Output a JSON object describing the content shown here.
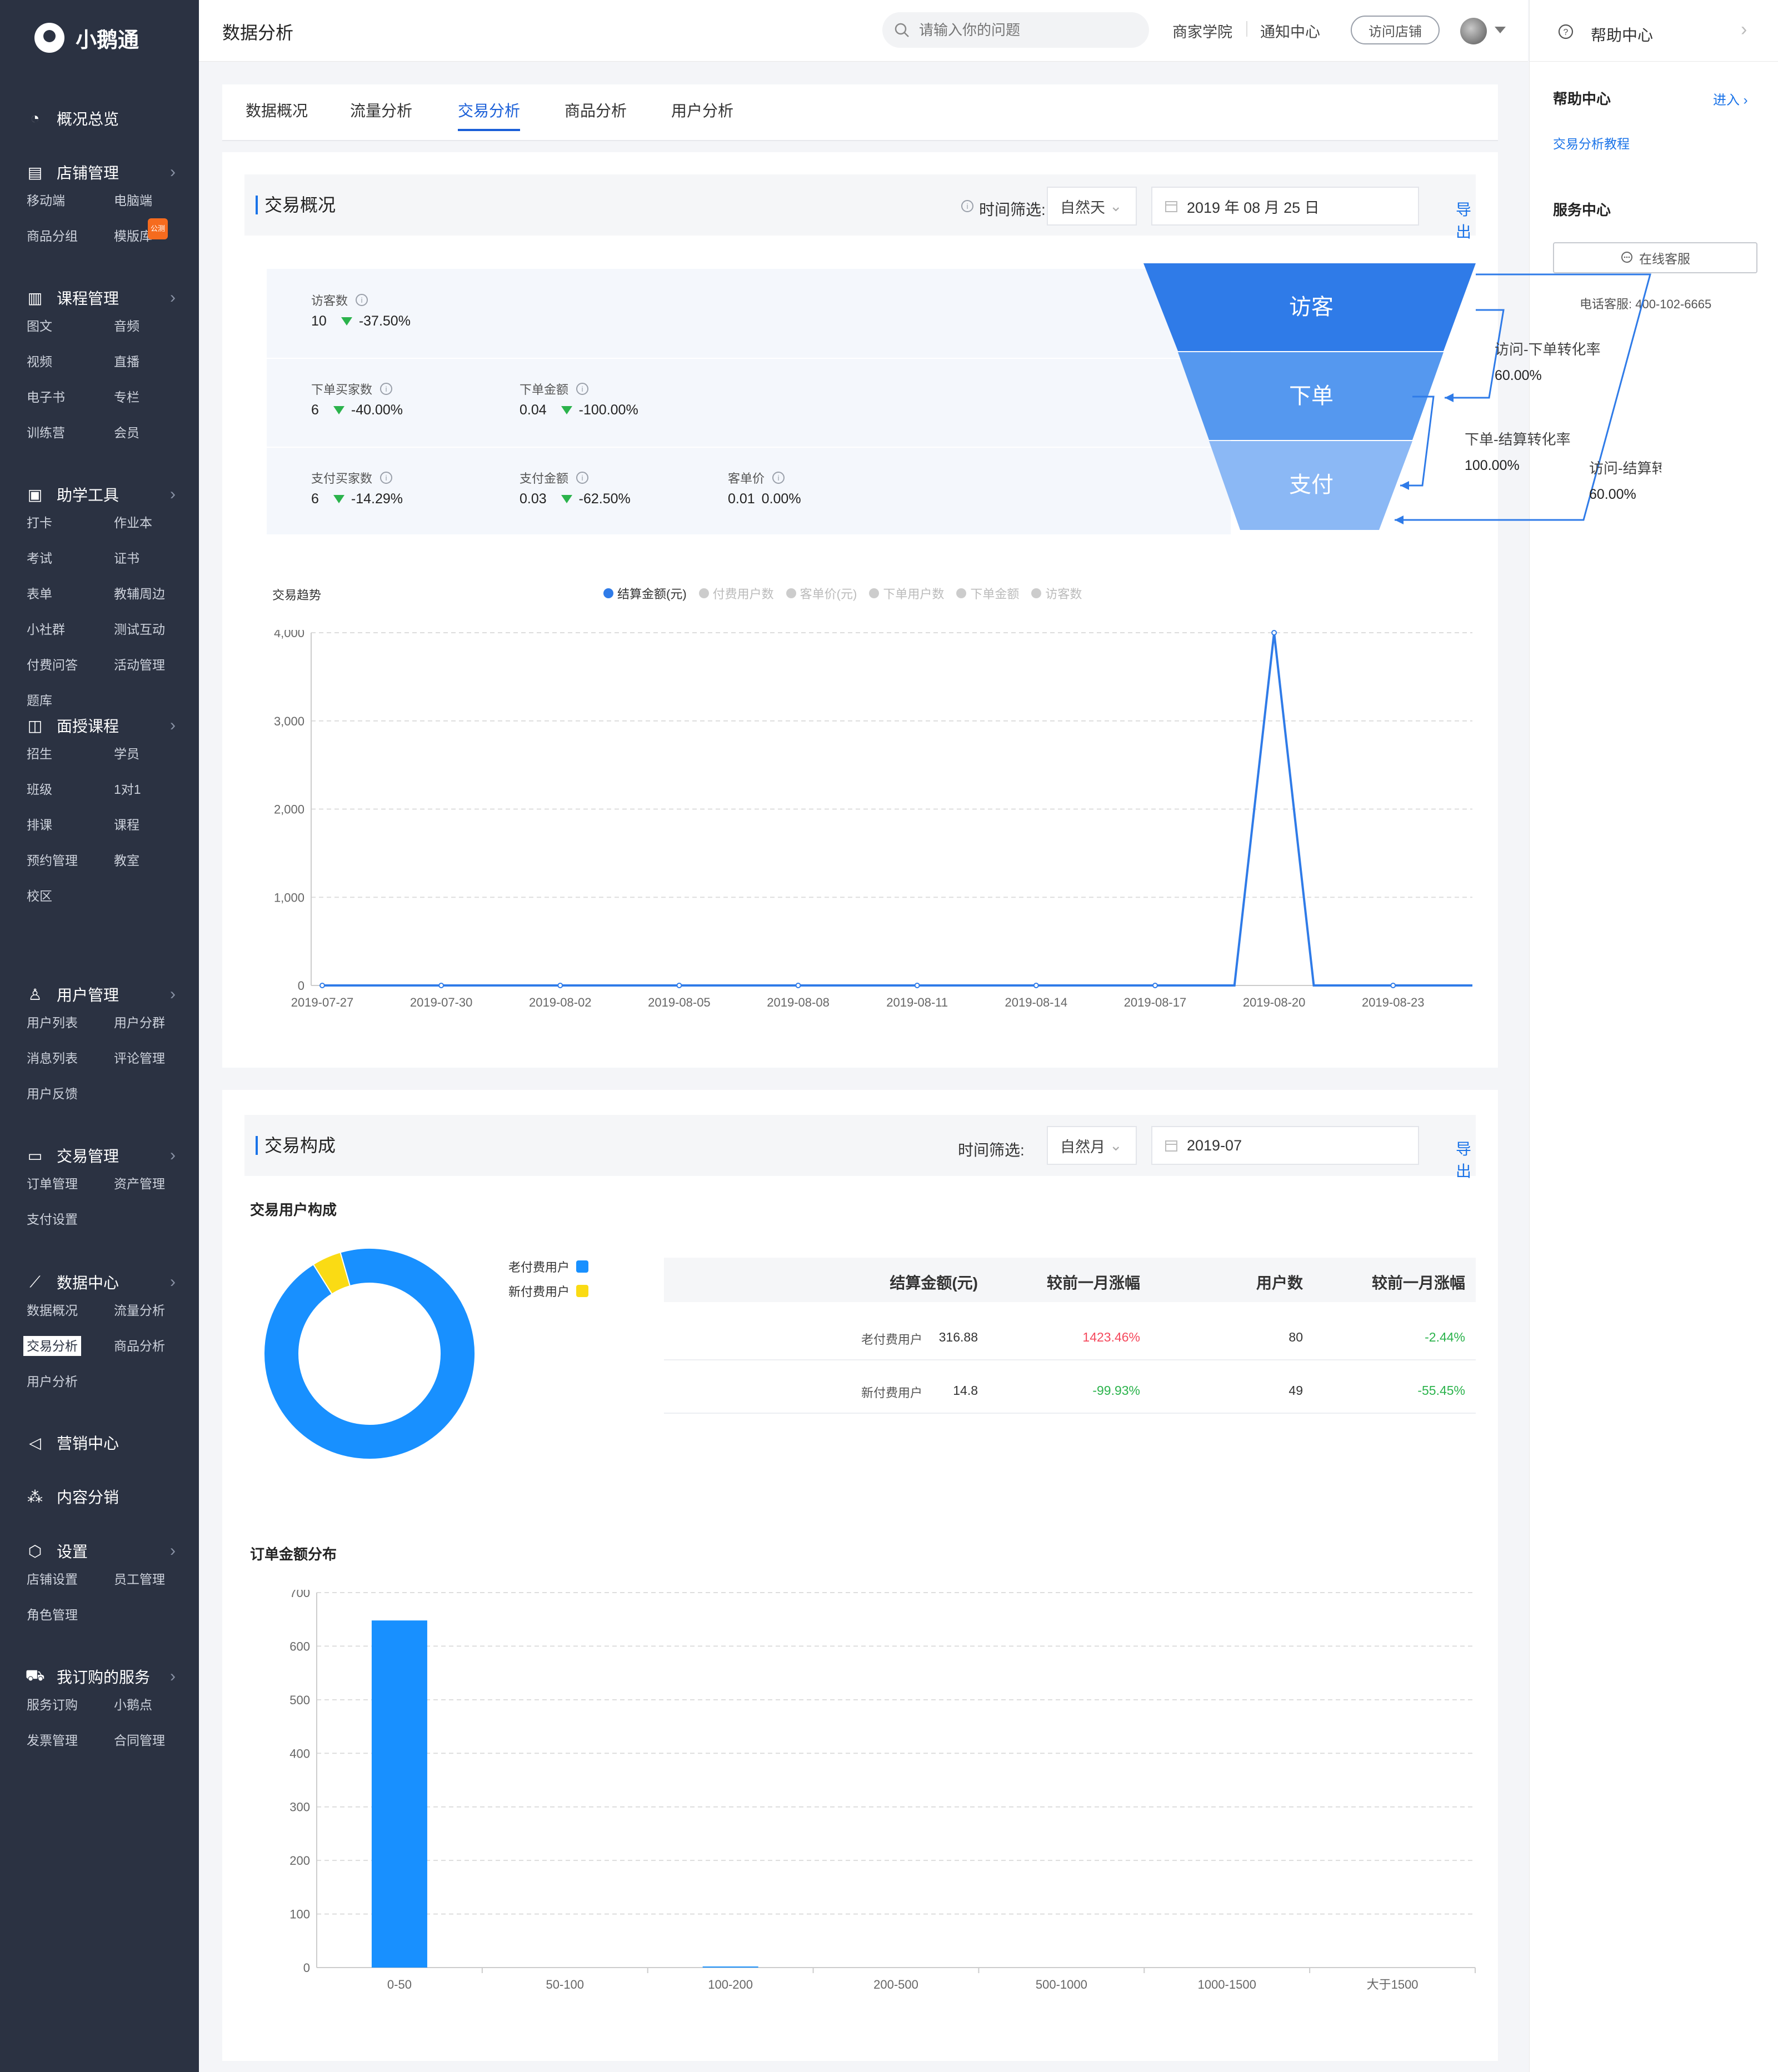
{
  "app": {
    "brand": "小鹅通",
    "page_title": "数据分析"
  },
  "sidebar": [
    {
      "label": "概况总览",
      "icon": "pie-chart-icon",
      "chevron": false,
      "sub": []
    },
    {
      "label": "店铺管理",
      "icon": "shop-icon",
      "chevron": true,
      "sub": [
        {
          "label": "移动端"
        },
        {
          "label": "电脑端"
        },
        {
          "label": "商品分组"
        },
        {
          "label": "模版库",
          "badge": "公测"
        }
      ]
    },
    {
      "label": "课程管理",
      "icon": "book-icon",
      "chevron": true,
      "sub": [
        {
          "label": "图文"
        },
        {
          "label": "音频"
        },
        {
          "label": "视频"
        },
        {
          "label": "直播"
        },
        {
          "label": "电子书"
        },
        {
          "label": "专栏"
        },
        {
          "label": "训练营"
        },
        {
          "label": "会员"
        }
      ]
    },
    {
      "label": "助学工具",
      "icon": "toolbox-icon",
      "chevron": true,
      "sub": [
        {
          "label": "打卡"
        },
        {
          "label": "作业本"
        },
        {
          "label": "考试"
        },
        {
          "label": "证书"
        },
        {
          "label": "表单"
        },
        {
          "label": "教辅周边"
        },
        {
          "label": "小社群"
        },
        {
          "label": "测试互动"
        },
        {
          "label": "付费问答"
        },
        {
          "label": "活动管理"
        },
        {
          "label": "题库"
        }
      ]
    },
    {
      "label": "面授课程",
      "icon": "teacher-icon",
      "chevron": true,
      "sub": [
        {
          "label": "招生"
        },
        {
          "label": "学员"
        },
        {
          "label": "班级"
        },
        {
          "label": "1对1"
        },
        {
          "label": "排课"
        },
        {
          "label": "课程"
        },
        {
          "label": "预约管理"
        },
        {
          "label": "教室"
        },
        {
          "label": "校区"
        }
      ]
    },
    {
      "label": "用户管理",
      "icon": "user-icon",
      "chevron": true,
      "sub": [
        {
          "label": "用户列表"
        },
        {
          "label": "用户分群"
        },
        {
          "label": "消息列表"
        },
        {
          "label": "评论管理"
        },
        {
          "label": "用户反馈"
        }
      ]
    },
    {
      "label": "交易管理",
      "icon": "card-icon",
      "chevron": true,
      "sub": [
        {
          "label": "订单管理"
        },
        {
          "label": "资产管理"
        },
        {
          "label": "支付设置"
        }
      ]
    },
    {
      "label": "数据中心",
      "icon": "line-chart-icon",
      "chevron": true,
      "sub": [
        {
          "label": "数据概况"
        },
        {
          "label": "流量分析"
        },
        {
          "label": "交易分析",
          "active": true
        },
        {
          "label": "商品分析"
        },
        {
          "label": "用户分析"
        }
      ]
    },
    {
      "label": "营销中心",
      "icon": "megaphone-icon",
      "chevron": false,
      "sub": []
    },
    {
      "label": "内容分销",
      "icon": "network-icon",
      "chevron": false,
      "sub": []
    },
    {
      "label": "设置",
      "icon": "settings-icon",
      "chevron": true,
      "sub": [
        {
          "label": "店铺设置"
        },
        {
          "label": "员工管理"
        },
        {
          "label": "角色管理"
        }
      ]
    },
    {
      "label": "我订购的服务",
      "icon": "cart-icon",
      "chevron": true,
      "sub": [
        {
          "label": "服务订购"
        },
        {
          "label": "小鹅点"
        },
        {
          "label": "发票管理"
        },
        {
          "label": "合同管理"
        }
      ]
    }
  ],
  "topbar": {
    "search_placeholder": "请输入你的问题",
    "links": [
      "商家学院",
      "通知中心"
    ],
    "visit_store": "访问店铺"
  },
  "tabs": [
    {
      "label": "数据概况",
      "active": false
    },
    {
      "label": "流量分析",
      "active": false
    },
    {
      "label": "交易分析",
      "active": true
    },
    {
      "label": "商品分析",
      "active": false
    },
    {
      "label": "用户分析",
      "active": false
    }
  ],
  "overview": {
    "title": "交易概况",
    "filter_label": "时间筛选:",
    "filter_value": "自然天",
    "date": "2019 年 08 月 25 日",
    "export": "导出",
    "stats": [
      [
        {
          "label": "访客数",
          "value": "10",
          "change": "-37.50%",
          "down": true
        }
      ],
      [
        {
          "label": "下单买家数",
          "value": "6",
          "change": "-40.00%",
          "down": true
        },
        {
          "label": "下单金额",
          "value": "0.04",
          "change": "-100.00%",
          "down": true
        }
      ],
      [
        {
          "label": "支付买家数",
          "value": "6",
          "change": "-14.29%",
          "down": true
        },
        {
          "label": "支付金额",
          "value": "0.03",
          "change": "-62.50%",
          "down": true
        },
        {
          "label": "客单价",
          "value": "0.01",
          "change": "0.00%",
          "down": false
        }
      ]
    ],
    "funnel": {
      "stages": [
        "访客",
        "下单",
        "支付"
      ],
      "colors": [
        "#2f7be8",
        "#5598ef",
        "#8bb8f5"
      ],
      "rates": [
        {
          "label": "访问-下单转化率",
          "value": "60.00%"
        },
        {
          "label": "下单-结算转化率",
          "value": "100.00%"
        },
        {
          "label": "访问-结算转化率",
          "value": "60.00%"
        }
      ]
    }
  },
  "trend": {
    "title": "交易趋势",
    "legend": [
      {
        "name": "结算金额(元)",
        "active": true
      },
      {
        "name": "付费用户数",
        "active": false
      },
      {
        "name": "客单价(元)",
        "active": false
      },
      {
        "name": "下单用户数",
        "active": false
      },
      {
        "name": "下单金额",
        "active": false
      },
      {
        "name": "访客数",
        "active": false
      }
    ]
  },
  "composition": {
    "title": "交易构成",
    "filter_label": "时间筛选:",
    "filter_value": "自然月",
    "date": "2019-07",
    "export": "导出",
    "users_title": "交易用户构成",
    "donut_legend": [
      {
        "name": "老付费用户",
        "color": "#1890ff"
      },
      {
        "name": "新付费用户",
        "color": "#fadb14"
      }
    ],
    "table": {
      "headers": [
        "结算金额(元)",
        "较前一月涨幅",
        "用户数",
        "较前一月涨幅"
      ],
      "rows": [
        {
          "name": "老付费用户",
          "amount": "316.88",
          "amount_change": "1423.46%",
          "users": "80",
          "users_change": "-2.44%"
        },
        {
          "name": "新付费用户",
          "amount": "14.8",
          "amount_change": "-99.93%",
          "users": "49",
          "users_change": "-55.45%"
        }
      ]
    },
    "orders_title": "订单金额分布"
  },
  "help": {
    "title": "帮助中心",
    "section_title": "帮助中心",
    "enter": "进入",
    "tutorial": "交易分析教程",
    "service_title": "服务中心",
    "online": "在线客服",
    "phone": "电话客服:  400-102-6665"
  },
  "chart_data": [
    {
      "type": "line",
      "title": "交易趋势",
      "series": [
        {
          "name": "结算金额(元)",
          "x": [
            "2019-07-27",
            "2019-07-30",
            "2019-08-02",
            "2019-08-05",
            "2019-08-08",
            "2019-08-11",
            "2019-08-14",
            "2019-08-17",
            "2019-08-19",
            "2019-08-20",
            "2019-08-21",
            "2019-08-23",
            "2019-08-25"
          ],
          "values": [
            0,
            0,
            0,
            0,
            0,
            0,
            0,
            0,
            0,
            4000,
            0,
            0,
            0
          ]
        }
      ],
      "x_ticks": [
        "2019-07-27",
        "2019-07-30",
        "2019-08-02",
        "2019-08-05",
        "2019-08-08",
        "2019-08-11",
        "2019-08-14",
        "2019-08-17",
        "2019-08-20",
        "2019-08-23"
      ],
      "y_ticks": [
        "0",
        "1,000",
        "2,000",
        "3,000",
        "4,000"
      ],
      "ylim": [
        0,
        4000
      ],
      "grid": true
    },
    {
      "type": "pie",
      "title": "交易用户构成",
      "categories": [
        "老付费用户",
        "新付费用户"
      ],
      "values": [
        316.88,
        14.8
      ]
    },
    {
      "type": "bar",
      "title": "订单金额分布",
      "categories": [
        "0-50",
        "50-100",
        "100-200",
        "200-500",
        "500-1000",
        "1000-1500",
        "大于1500"
      ],
      "values": [
        648,
        0,
        2,
        0,
        0,
        0,
        0
      ],
      "y_ticks": [
        "0",
        "100",
        "200",
        "300",
        "400",
        "500",
        "600",
        "700"
      ],
      "ylim": [
        0,
        700
      ],
      "grid": true
    }
  ]
}
